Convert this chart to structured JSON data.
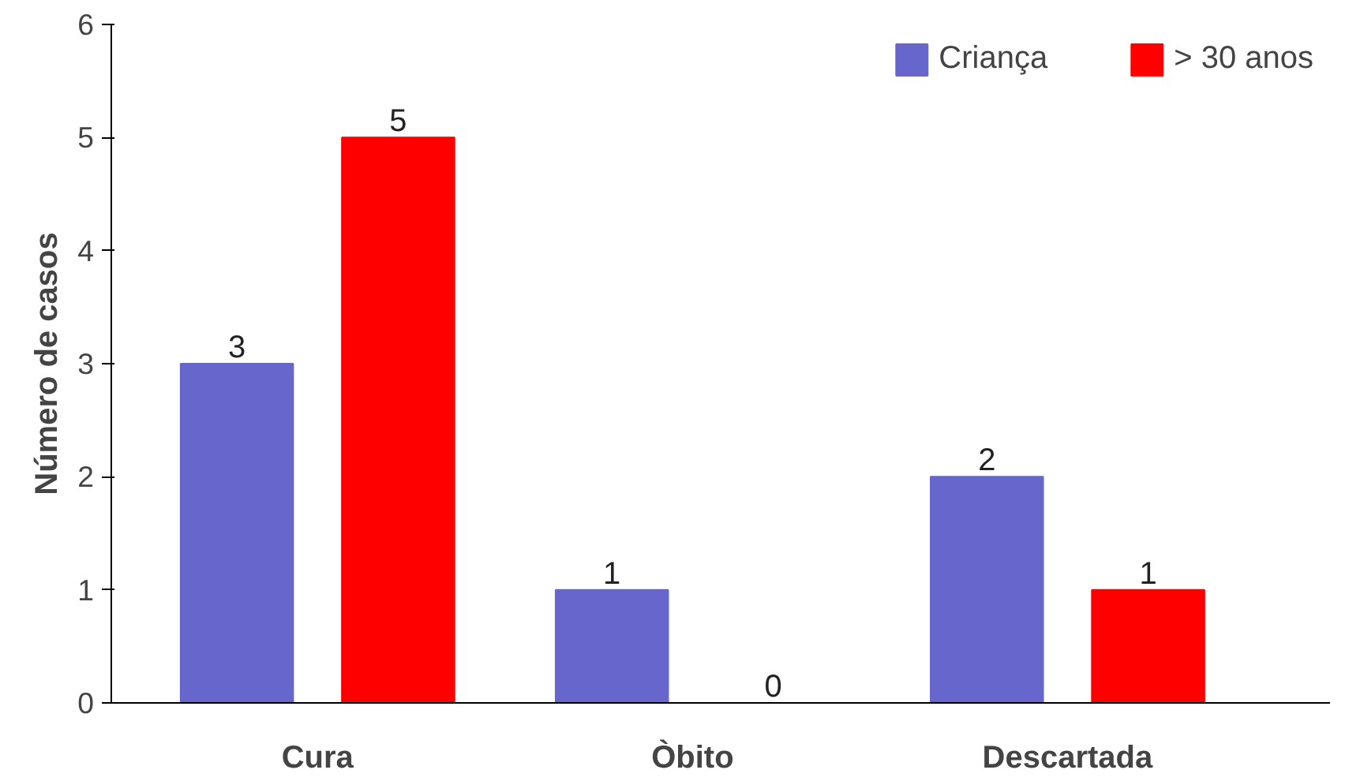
{
  "chart_data": {
    "type": "bar",
    "ylabel": "Número de casos",
    "categories": [
      "Cura",
      "Òbito",
      "Descartada"
    ],
    "series": [
      {
        "name": "Criança",
        "color": "#6666cc",
        "values": [
          3,
          1,
          2
        ]
      },
      {
        "name": "> 30 anos",
        "color": "#ff0000",
        "values": [
          5,
          0,
          1
        ]
      }
    ],
    "ylim": [
      0,
      6
    ],
    "yticks": [
      0,
      1,
      2,
      3,
      4,
      5,
      6
    ],
    "grid": false,
    "legend": "top right",
    "data_labels": true
  }
}
